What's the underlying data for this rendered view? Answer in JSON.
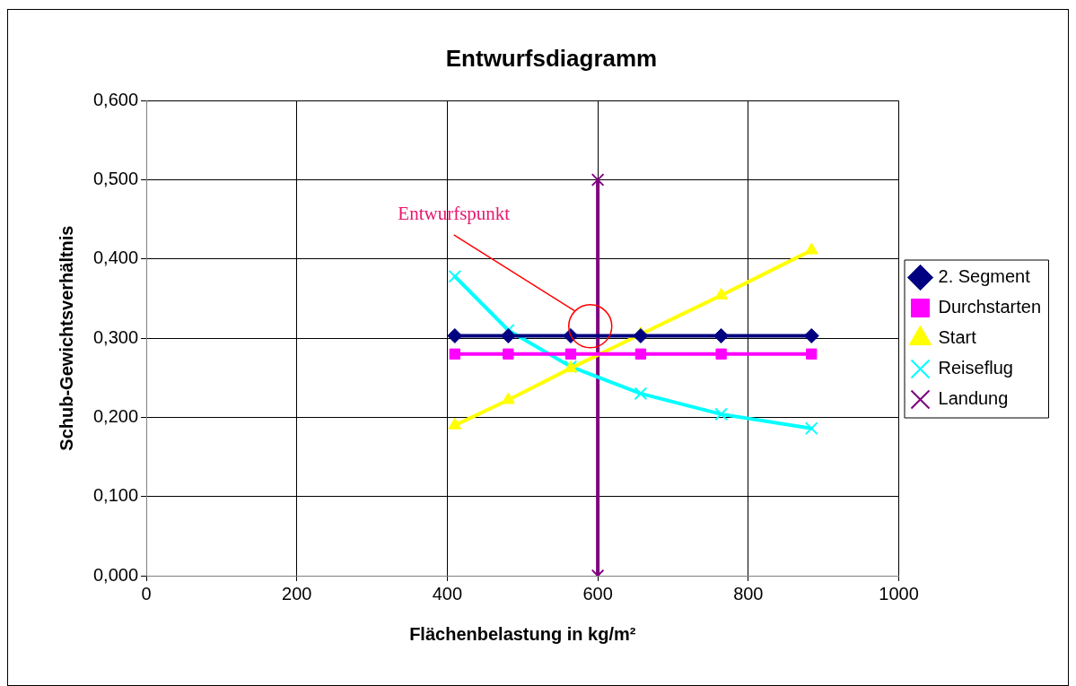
{
  "chart_data": {
    "type": "line",
    "title": "Entwurfsdiagramm",
    "xlabel": "Flächenbelastung in kg/m²",
    "ylabel": "Schub-Gewichtsverhältnis",
    "xlim": [
      0,
      1000
    ],
    "xticks": [
      0,
      200,
      400,
      600,
      800,
      1000
    ],
    "ylim": [
      0,
      0.6
    ],
    "yticks": [
      {
        "value": 0,
        "label": "0,000"
      },
      {
        "value": 0.1,
        "label": "0,100"
      },
      {
        "value": 0.2,
        "label": "0,200"
      },
      {
        "value": 0.3,
        "label": "0,300"
      },
      {
        "value": 0.4,
        "label": "0,400"
      },
      {
        "value": 0.5,
        "label": "0,500"
      },
      {
        "value": 0.6,
        "label": "0,600"
      }
    ],
    "grid": true,
    "legend": "right",
    "series": [
      {
        "name": "2. Segment",
        "color": "#000080",
        "marker": "diamond",
        "x": [
          410,
          481,
          564,
          657,
          764,
          884
        ],
        "values": [
          0.303,
          0.303,
          0.303,
          0.303,
          0.303,
          0.303
        ]
      },
      {
        "name": "Durchstarten",
        "color": "#ff00ff",
        "marker": "square",
        "x": [
          410,
          481,
          564,
          657,
          764,
          884
        ],
        "values": [
          0.28,
          0.28,
          0.28,
          0.28,
          0.28,
          0.28
        ]
      },
      {
        "name": "Start",
        "color": "#ffff00",
        "marker": "triangle",
        "x": [
          410,
          481,
          564,
          657,
          764,
          884
        ],
        "values": [
          0.19,
          0.222,
          0.262,
          0.305,
          0.354,
          0.411
        ]
      },
      {
        "name": "Reiseflug",
        "color": "#00ffff",
        "marker": "cross",
        "x": [
          410,
          481,
          564,
          657,
          764,
          884
        ],
        "values": [
          0.378,
          0.31,
          0.264,
          0.23,
          0.204,
          0.186
        ]
      },
      {
        "name": "Landung",
        "color": "#800080",
        "marker": "cross",
        "x": [
          600,
          600
        ],
        "values": [
          0,
          0.5
        ]
      }
    ],
    "annotations": [
      "Entwurfspunkt"
    ]
  }
}
